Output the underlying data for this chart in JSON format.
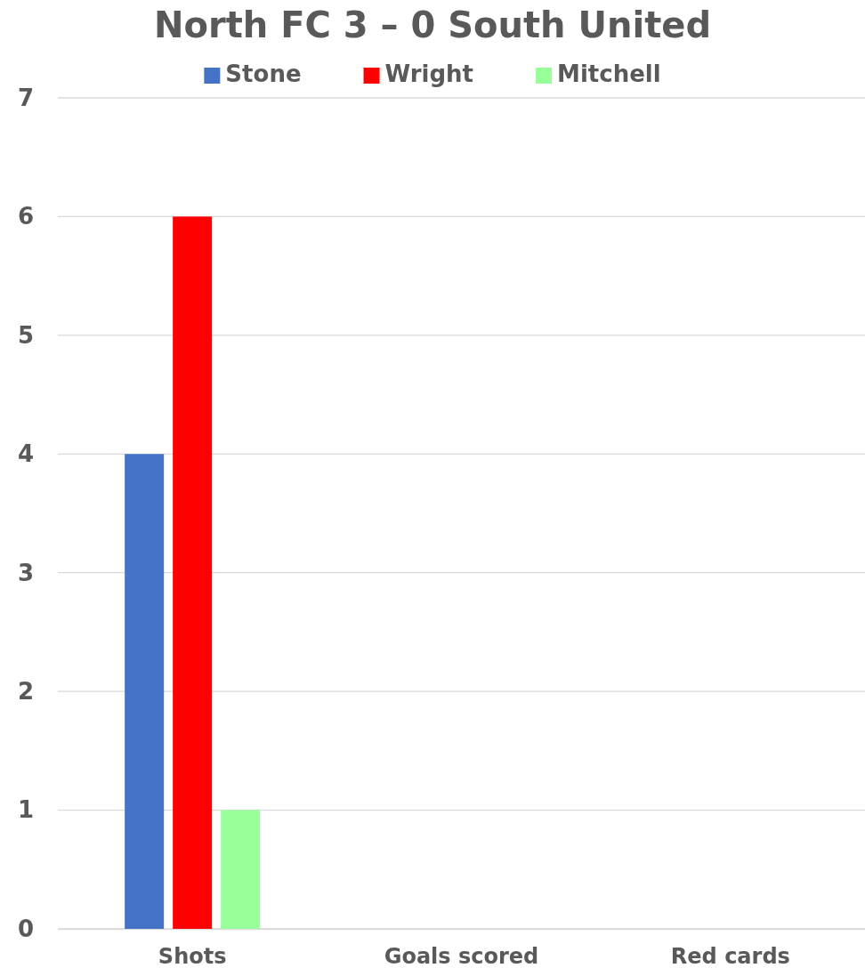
{
  "chart_data": {
    "type": "bar",
    "title": "North FC 3 – 0 South United",
    "categories": [
      "Shots",
      "Goals scored",
      "Red cards"
    ],
    "series": [
      {
        "name": "Stone",
        "color": "#4472c4",
        "values": [
          4,
          0,
          0
        ]
      },
      {
        "name": "Wright",
        "color": "#ff0000",
        "values": [
          6,
          0,
          0
        ]
      },
      {
        "name": "Mitchell",
        "color": "#99ff99",
        "values": [
          1,
          0,
          0
        ]
      }
    ],
    "ylim": [
      0,
      7
    ],
    "yticks": [
      0,
      1,
      2,
      3,
      4,
      5,
      6,
      7
    ],
    "grid": "y",
    "legend": "top"
  }
}
